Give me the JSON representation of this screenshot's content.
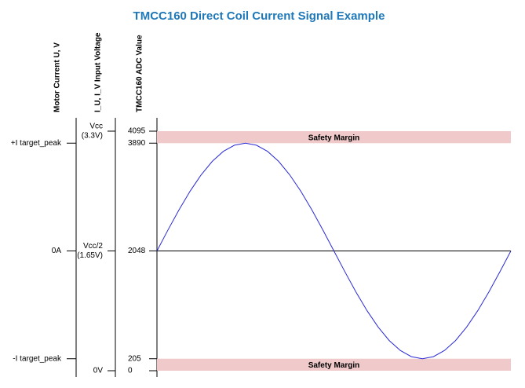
{
  "chart_data": {
    "type": "line",
    "title": "TMCC160 Direct Coil Current Signal Example",
    "axis_labels": [
      "Motor Current U, V",
      "I_U, I_V Input Voltage",
      "TMCC160 ADC Value"
    ],
    "ylim": [
      0,
      4095
    ],
    "yticks": [
      0,
      205,
      2048,
      3890,
      4095
    ],
    "current_ticks": [
      {
        "value": 3890,
        "label": "+I target_peak"
      },
      {
        "value": 2048,
        "label": "0A"
      },
      {
        "value": 205,
        "label": "-I target_peak"
      }
    ],
    "voltage_ticks": [
      {
        "value": 4095,
        "label": "Vcc",
        "sublabel": "(3.3V)"
      },
      {
        "value": 2048,
        "label": "Vcc/2",
        "sublabel": "(1.65V)"
      },
      {
        "value": 0,
        "label": "0V"
      }
    ],
    "bands": [
      {
        "from": 3890,
        "to": 4095,
        "label": "Safety Margin"
      },
      {
        "from": 0,
        "to": 205,
        "label": "Safety Margin"
      }
    ],
    "band_color": "#f0caca",
    "reference_line": 2048,
    "xlim": [
      0,
      32
    ],
    "x": [
      0,
      1,
      2,
      3,
      4,
      5,
      6,
      7,
      8,
      9,
      10,
      11,
      12,
      13,
      14,
      15,
      16,
      17,
      18,
      19,
      20,
      21,
      22,
      23,
      24,
      25,
      26,
      27,
      28,
      29,
      30,
      31,
      32
    ],
    "series": [
      {
        "color": "#2a2ad6",
        "values": [
          2048,
          2407,
          2753,
          3071,
          3350,
          3580,
          3750,
          3855,
          3890,
          3855,
          3750,
          3580,
          3350,
          3071,
          2753,
          2407,
          2048,
          1689,
          1343,
          1025,
          746,
          516,
          346,
          241,
          205,
          241,
          346,
          516,
          746,
          1025,
          1343,
          1689,
          2048
        ]
      }
    ]
  }
}
